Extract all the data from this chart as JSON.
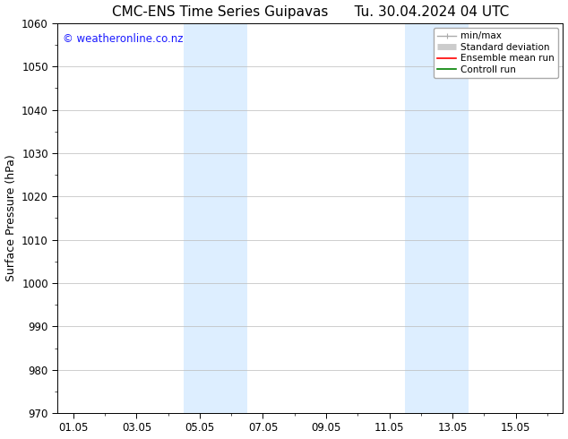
{
  "title_left": "CMC-ENS Time Series Guipavas",
  "title_right": "Tu. 30.04.2024 04 UTC",
  "ylabel": "Surface Pressure (hPa)",
  "ylim": [
    970,
    1060
  ],
  "yticks": [
    970,
    980,
    990,
    1000,
    1010,
    1020,
    1030,
    1040,
    1050,
    1060
  ],
  "xtick_labels": [
    "01.05",
    "03.05",
    "05.05",
    "07.05",
    "09.05",
    "11.05",
    "13.05",
    "15.05"
  ],
  "xtick_positions": [
    0,
    2,
    4,
    6,
    8,
    10,
    12,
    14
  ],
  "xmin": -0.5,
  "xmax": 15.5,
  "shaded_regions": [
    {
      "xmin": 3.5,
      "xmax": 5.5,
      "color": "#ddeeff"
    },
    {
      "xmin": 10.5,
      "xmax": 12.5,
      "color": "#ddeeff"
    }
  ],
  "watermark_text": "© weatheronline.co.nz",
  "watermark_color": "#1a1aff",
  "watermark_fontsize": 8.5,
  "legend_items": [
    {
      "label": "min/max",
      "color": "#aaaaaa",
      "lw": 1.0
    },
    {
      "label": "Standard deviation",
      "color": "#cccccc",
      "lw": 5
    },
    {
      "label": "Ensemble mean run",
      "color": "#ff0000",
      "lw": 1.2
    },
    {
      "label": "Controll run",
      "color": "#008000",
      "lw": 1.2
    }
  ],
  "background_color": "#ffffff",
  "grid_color": "#bbbbbb",
  "title_fontsize": 11,
  "axis_fontsize": 8.5,
  "ylabel_fontsize": 9
}
